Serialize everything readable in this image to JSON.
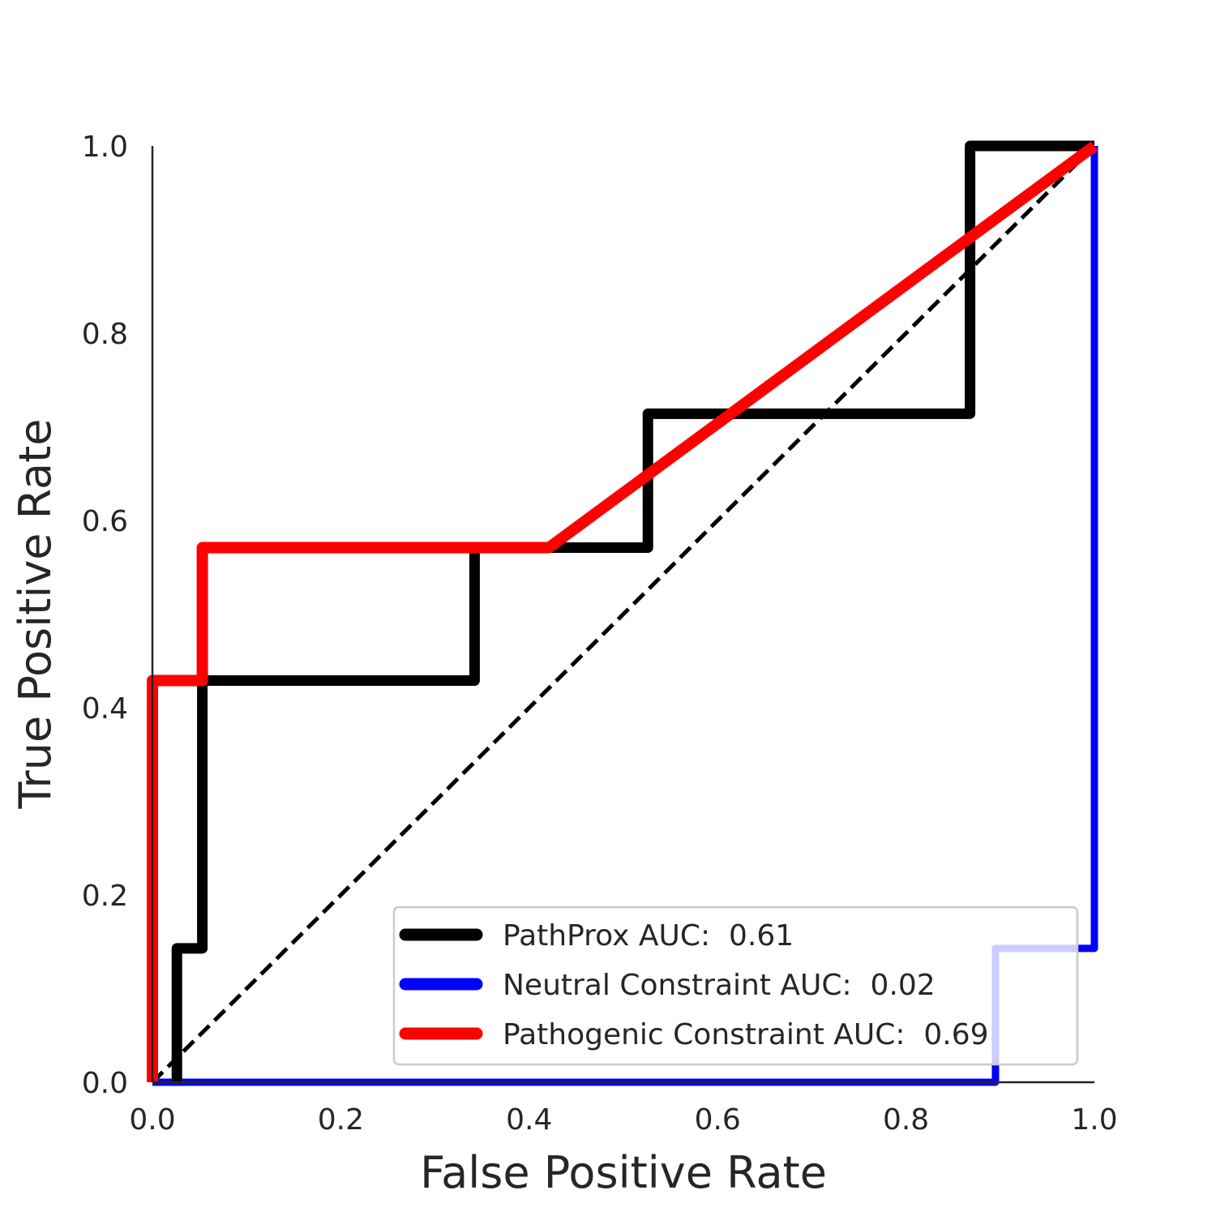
{
  "chart_data": {
    "type": "line",
    "title": "",
    "xlabel": "False Positive Rate",
    "ylabel": "True Positive Rate",
    "xlim": [
      0,
      1
    ],
    "ylim": [
      0,
      1
    ],
    "xticks": [
      "0.0",
      "0.2",
      "0.4",
      "0.6",
      "0.8",
      "1.0"
    ],
    "yticks": [
      "0.0",
      "0.2",
      "0.4",
      "0.6",
      "0.8",
      "1.0"
    ],
    "grid": false,
    "legend_position": "bottom-right",
    "series": [
      {
        "name": "PathProx AUC:  0.61",
        "color": "#000000",
        "points": [
          [
            0.026,
            0.0
          ],
          [
            0.026,
            0.143
          ],
          [
            0.053,
            0.143
          ],
          [
            0.053,
            0.429
          ],
          [
            0.342,
            0.429
          ],
          [
            0.342,
            0.571
          ],
          [
            0.526,
            0.571
          ],
          [
            0.526,
            0.714
          ],
          [
            0.868,
            0.714
          ],
          [
            0.868,
            1.0
          ],
          [
            1.0,
            1.0
          ]
        ]
      },
      {
        "name": "Neutral Constraint AUC:  0.02",
        "color": "#0000ff",
        "points": [
          [
            0.0,
            0.0
          ],
          [
            0.895,
            0.0
          ],
          [
            0.895,
            0.143
          ],
          [
            1.0,
            0.143
          ],
          [
            1.0,
            1.0
          ]
        ]
      },
      {
        "name": "Pathogenic Constraint AUC:  0.69",
        "color": "#ff0000",
        "points": [
          [
            0.0,
            0.0
          ],
          [
            0.0,
            0.429
          ],
          [
            0.053,
            0.429
          ],
          [
            0.053,
            0.571
          ],
          [
            0.421,
            0.571
          ],
          [
            1.0,
            1.0
          ]
        ]
      }
    ],
    "reference_line": {
      "color": "#000000",
      "style": "dashed",
      "points": [
        [
          0,
          0
        ],
        [
          1,
          1
        ]
      ]
    }
  }
}
